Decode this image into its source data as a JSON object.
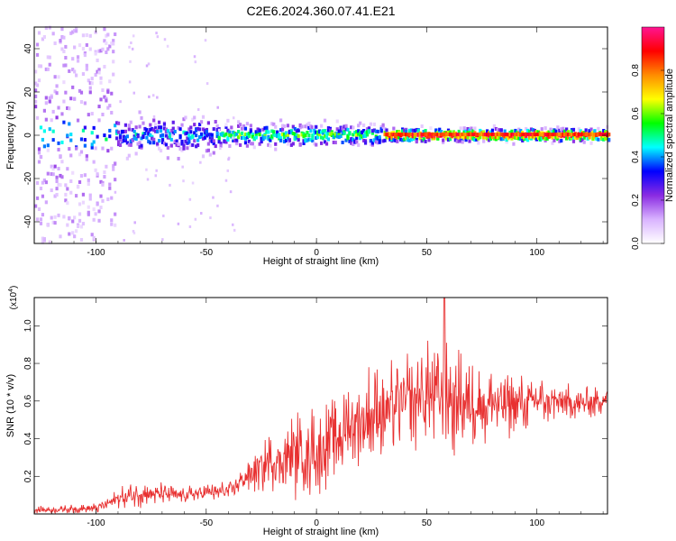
{
  "title": "C2E6.2024.360.07.41.E21",
  "chart_data": [
    {
      "type": "heatmap",
      "xlabel": "Height of straight line (km)",
      "ylabel": "Frequency (Hz)",
      "xlim": [
        -128,
        132
      ],
      "ylim": [
        -50,
        50
      ],
      "x_ticks": [
        -100,
        -50,
        0,
        50,
        100
      ],
      "y_ticks": [
        40,
        20,
        0,
        -20,
        -40
      ],
      "grid": false,
      "colorbar": {
        "label": "Normalized spectral amplitude",
        "range": [
          0,
          1
        ],
        "ticks": [
          "0.0",
          "0.2",
          "0.4",
          "0.6",
          "0.8"
        ],
        "colors": [
          "#ffffff",
          "#d9b3ff",
          "#8a2be2",
          "#0000ff",
          "#00ffff",
          "#00ff00",
          "#ffff00",
          "#ff8c00",
          "#ff0000",
          "#ff1493"
        ]
      },
      "description_bands": [
        {
          "x_range": [
            -128,
            -92
          ],
          "freq_halfwidth": 50,
          "amplitude": 0.15
        },
        {
          "x_range": [
            -92,
            -45
          ],
          "freq_halfwidth": 8,
          "amplitude": 0.35
        },
        {
          "x_range": [
            -45,
            30
          ],
          "freq_halfwidth": 5,
          "amplitude": 0.5
        },
        {
          "x_range": [
            30,
            132
          ],
          "freq_halfwidth": 3,
          "amplitude": 0.85
        }
      ]
    },
    {
      "type": "line",
      "xlabel": "Height of straight line (km)",
      "ylabel": "SNR (10 * v/v)",
      "y_multiplier": "(x10",
      "y_multiplier_exp": "4",
      "y_multiplier_close": ")",
      "xlim": [
        -128,
        132
      ],
      "ylim": [
        0,
        1.15
      ],
      "x_ticks": [
        -100,
        -50,
        0,
        50,
        100
      ],
      "y_ticks": [
        "0.2",
        "0.4",
        "0.6",
        "0.8",
        "1.0"
      ],
      "series_color": "#e83030",
      "envelope": {
        "x": [
          -128,
          -100,
          -90,
          -80,
          -60,
          -40,
          -30,
          -20,
          -10,
          0,
          10,
          20,
          30,
          40,
          50,
          58,
          70,
          80,
          90,
          100,
          110,
          120,
          132
        ],
        "mean": [
          0.02,
          0.03,
          0.08,
          0.11,
          0.1,
          0.12,
          0.22,
          0.28,
          0.32,
          0.34,
          0.42,
          0.5,
          0.55,
          0.6,
          0.62,
          0.62,
          0.6,
          0.58,
          0.58,
          0.6,
          0.6,
          0.58,
          0.62
        ],
        "spread": [
          0.02,
          0.03,
          0.06,
          0.08,
          0.05,
          0.06,
          0.12,
          0.18,
          0.25,
          0.28,
          0.28,
          0.3,
          0.3,
          0.3,
          0.32,
          0.35,
          0.3,
          0.25,
          0.18,
          0.15,
          0.12,
          0.1,
          0.1
        ]
      },
      "peak": {
        "x": 58,
        "y": 1.15
      }
    }
  ]
}
